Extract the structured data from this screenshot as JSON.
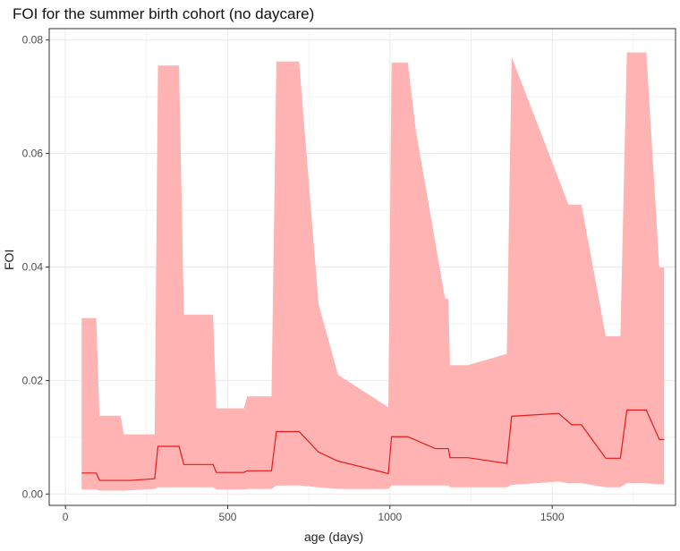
{
  "chart_data": {
    "type": "area",
    "title": "FOI for the summer birth cohort (no daycare)",
    "xlabel": "age (days)",
    "ylabel": "FOI",
    "xlim": [
      -50,
      1880
    ],
    "ylim": [
      -0.002,
      0.082
    ],
    "x_ticks": [
      0,
      500,
      1000,
      1500
    ],
    "y_ticks": [
      0.0,
      0.02,
      0.04,
      0.06,
      0.08
    ],
    "x_tick_labels": [
      "0",
      "500",
      "1000",
      "1500"
    ],
    "y_tick_labels": [
      "0.00",
      "0.02",
      "0.04",
      "0.06",
      "0.08"
    ],
    "grid": true,
    "legend": "none",
    "colors": {
      "line": "#e8191c",
      "ribbon": "#ffb3b3",
      "grid": "#ebebeb",
      "panel_border": "#333333"
    },
    "series": [
      {
        "type": "line",
        "x": [
          50,
          95,
          105,
          200,
          275,
          285,
          350,
          365,
          455,
          465,
          550,
          560,
          635,
          650,
          720,
          780,
          840,
          995,
          1005,
          1055,
          1140,
          1180,
          1185,
          1240,
          1360,
          1375,
          1520,
          1560,
          1590,
          1665,
          1710,
          1730,
          1790,
          1830,
          1845
        ],
        "y": [
          0.0037,
          0.0037,
          0.0024,
          0.0024,
          0.0027,
          0.0084,
          0.0084,
          0.0052,
          0.0052,
          0.0038,
          0.0038,
          0.0041,
          0.0041,
          0.011,
          0.011,
          0.0074,
          0.0058,
          0.0036,
          0.0101,
          0.0101,
          0.008,
          0.008,
          0.0064,
          0.0064,
          0.0054,
          0.0137,
          0.0142,
          0.0122,
          0.0122,
          0.0063,
          0.0063,
          0.0148,
          0.0148,
          0.0096,
          0.0096
        ]
      },
      {
        "type": "ribbon",
        "x": [
          50,
          95,
          105,
          170,
          180,
          275,
          285,
          350,
          365,
          455,
          465,
          550,
          560,
          635,
          650,
          720,
          780,
          840,
          995,
          1005,
          1055,
          1080,
          1170,
          1180,
          1185,
          1240,
          1360,
          1375,
          1520,
          1550,
          1590,
          1665,
          1710,
          1730,
          1790,
          1830,
          1845
        ],
        "upper": [
          0.031,
          0.031,
          0.0138,
          0.0138,
          0.0105,
          0.0105,
          0.0755,
          0.0755,
          0.0316,
          0.0316,
          0.0151,
          0.0151,
          0.0172,
          0.0172,
          0.0762,
          0.0762,
          0.0335,
          0.021,
          0.0153,
          0.076,
          0.076,
          0.064,
          0.0344,
          0.0344,
          0.0227,
          0.0227,
          0.0247,
          0.077,
          0.0555,
          0.051,
          0.051,
          0.0278,
          0.0278,
          0.0778,
          0.0778,
          0.0399,
          0.0399
        ],
        "lower": [
          0.0008,
          0.0008,
          0.0006,
          0.0006,
          0.0006,
          0.0009,
          0.0012,
          0.0012,
          0.0012,
          0.0012,
          0.0008,
          0.0008,
          0.0009,
          0.0009,
          0.0015,
          0.0015,
          0.0012,
          0.0009,
          0.0009,
          0.0015,
          0.0015,
          0.0015,
          0.0015,
          0.0015,
          0.0012,
          0.0012,
          0.0012,
          0.0016,
          0.0022,
          0.0019,
          0.0019,
          0.0012,
          0.0012,
          0.0019,
          0.0019,
          0.0017,
          0.0017
        ]
      }
    ]
  }
}
